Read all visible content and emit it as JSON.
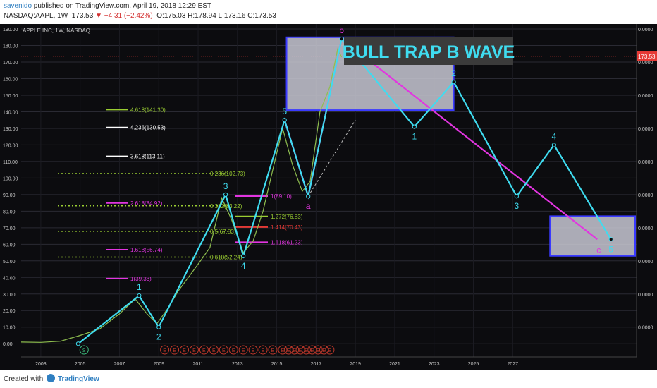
{
  "header": {
    "author": "savenido",
    "published": " published on TradingView.com, April 19, 2018 12:29 EST",
    "symbol": "NASDAQ:AAPL, 1W",
    "last": "173.53",
    "change": "−4.31 (−2.42%)",
    "ohlc": "O:175.03 H:178.94 L:173.16 C:173.53"
  },
  "footer": {
    "created_with": "Created with",
    "brand": "TradingView"
  },
  "colors": {
    "cyan": "#3fdcf0",
    "magenta": "#e235e0",
    "green_fib": "#9acd32",
    "box": "#c8c8d4",
    "box_border": "#3a3aff",
    "grid": "#2a2a33",
    "text": "#c8c8c8",
    "price_tag": "#e53935",
    "label_bg": "#3b3b3b"
  },
  "chart_data": {
    "type": "line",
    "instrument": "APPLE INC, 1W, NASDAQ",
    "title_label": "BULL TRAP B WAVE",
    "current_price": "173.53",
    "xlim": [
      2002.0,
      2033.3
    ],
    "ylim": [
      -8,
      193
    ],
    "y_ticks": [
      "0.00",
      "10.00",
      "20.00",
      "30.00",
      "40.00",
      "50.00",
      "60.00",
      "70.00",
      "80.00",
      "90.00",
      "100.00",
      "110.00",
      "120.00",
      "130.00",
      "140.00",
      "150.00",
      "160.00",
      "170.00",
      "180.00",
      "190.00"
    ],
    "x_ticks": [
      "2003",
      "2005",
      "2007",
      "2009",
      "2011",
      "2013",
      "2015",
      "2017",
      "2019",
      "2021",
      "2023",
      "2025",
      "2027"
    ],
    "right_axis_value": "0.0000",
    "price_series": {
      "name": "AAPL",
      "x": [
        2002.0,
        2003.0,
        2004.0,
        2005.0,
        2006.0,
        2007.0,
        2007.8,
        2008.4,
        2008.9,
        2009.5,
        2010.0,
        2010.5,
        2011.0,
        2011.6,
        2012.2,
        2012.7,
        2013.3,
        2013.8,
        2014.3,
        2014.8,
        2015.3,
        2015.8,
        2016.3,
        2016.7,
        2017.2,
        2017.7,
        2018.1,
        2018.3
      ],
      "y": [
        1,
        0.8,
        1.5,
        5,
        9,
        18,
        27,
        18,
        12,
        22,
        32,
        40,
        48,
        58,
        88,
        75,
        55,
        62,
        80,
        105,
        130,
        108,
        92,
        98,
        140,
        155,
        178,
        173
      ]
    },
    "wave_cyan": {
      "name": "wave count",
      "x": [
        2004.9,
        2008.0,
        2009.0,
        2012.4,
        2013.3,
        2015.4,
        2016.6,
        2018.3,
        2022.0,
        2024.0,
        2027.2,
        2029.1,
        2032.0
      ],
      "y": [
        0,
        29,
        10,
        90,
        53,
        135,
        89,
        184,
        131,
        158,
        89,
        120,
        63
      ],
      "labels": [
        "",
        "1",
        "2",
        "3",
        "4",
        "5",
        "a",
        "b",
        "1",
        "2",
        "3",
        "4",
        "5"
      ]
    },
    "wave_magenta": {
      "name": "abc projection",
      "x": [
        2015.4,
        2016.6,
        2018.3,
        2031.3
      ],
      "y": [
        135,
        89,
        184,
        63
      ],
      "labels": [
        "",
        "a",
        "b",
        "c"
      ]
    },
    "boxes": [
      {
        "x0": 2015.5,
        "x1": 2024.0,
        "y0": 141,
        "y1": 185
      },
      {
        "x0": 2028.9,
        "x1": 2034.1,
        "y0": 53,
        "y1": 77
      }
    ],
    "fib_levels_upper": [
      {
        "label": "4.618(141.30)",
        "value": 141.3,
        "color": "#9acd32"
      },
      {
        "label": "4.236(130.53)",
        "value": 130.53,
        "color": "#ffffff"
      },
      {
        "label": "3.618(113.11)",
        "value": 113.11,
        "color": "#ffffff"
      },
      {
        "label": "2.618(84.92)",
        "value": 84.92,
        "color": "#e235e0"
      },
      {
        "label": "1.618(56.74)",
        "value": 56.74,
        "color": "#e235e0"
      },
      {
        "label": "1(39.33)",
        "value": 39.33,
        "color": "#e235e0"
      }
    ],
    "fib_retracements": [
      {
        "label": "0.236(102.73)",
        "value": 102.73
      },
      {
        "label": "0.382(83.22)",
        "value": 83.22
      },
      {
        "label": "0.5(67.83)",
        "value": 67.83
      },
      {
        "label": "0.618(52.24)",
        "value": 52.24
      }
    ],
    "fib_extensions_right": [
      {
        "label": "1(89.10)",
        "value": 89.1,
        "color": "#e235e0"
      },
      {
        "label": "1.272(76.83)",
        "value": 76.83,
        "color": "#9acd32"
      },
      {
        "label": "1.414(70.43)",
        "value": 70.43,
        "color": "#e53935"
      },
      {
        "label": "1.618(61.23)",
        "value": 61.23,
        "color": "#e235e0"
      }
    ],
    "cycle_markers": {
      "s_label": "S",
      "e_label": "E",
      "e_x": [
        2009.3,
        2009.8,
        2010.3,
        2010.8,
        2011.3,
        2011.8,
        2012.3,
        2012.8,
        2013.3,
        2013.8,
        2014.3,
        2014.8,
        2015.3,
        2015.6,
        2015.9,
        2016.2,
        2016.5,
        2016.8,
        2017.1,
        2017.4,
        2017.7
      ]
    },
    "grid": true
  }
}
